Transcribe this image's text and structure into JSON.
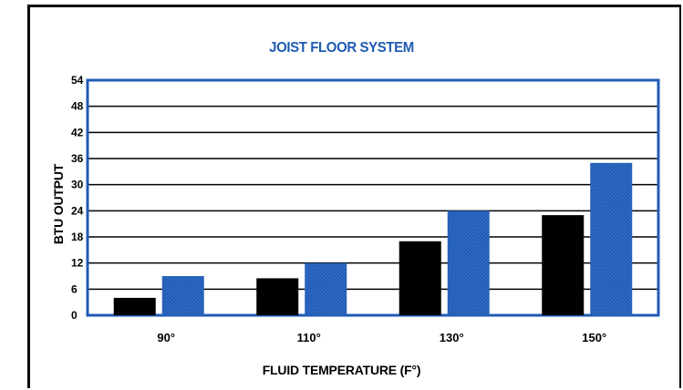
{
  "chart_data": {
    "type": "bar",
    "title": "JOIST FLOOR SYSTEM",
    "xlabel": "FLUID TEMPERATURE (F°)",
    "ylabel": "BTU OUTPUT",
    "categories": [
      "90°",
      "110°",
      "130°",
      "150°"
    ],
    "y_ticks": [
      0,
      6,
      12,
      18,
      24,
      30,
      36,
      42,
      48,
      54
    ],
    "ylim": [
      0,
      54
    ],
    "grid": true,
    "series": [
      {
        "color": "#000000",
        "values": [
          4,
          8.5,
          17,
          23
        ]
      },
      {
        "color": "#1f5bb4",
        "values": [
          9,
          12,
          24,
          35
        ]
      }
    ]
  }
}
